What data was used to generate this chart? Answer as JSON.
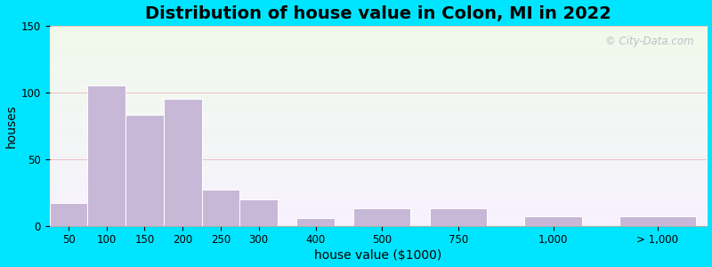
{
  "title": "Distribution of house value in Colon, MI in 2022",
  "xlabel": "house value ($1000)",
  "ylabel": "houses",
  "bar_color": "#c8b8d8",
  "bar_edgecolor": "#ffffff",
  "bar_heights": [
    17,
    105,
    83,
    95,
    27,
    20,
    6,
    13,
    13,
    7,
    7
  ],
  "ylim": [
    0,
    150
  ],
  "yticks": [
    0,
    50,
    100,
    150
  ],
  "xtick_labels": [
    "50",
    "100",
    "150",
    "200",
    "250",
    "300",
    "400",
    "500",
    "750",
    "1,000",
    "> 1,000"
  ],
  "background_outer": "#00e5ff",
  "grid_color": "#e8b8b8",
  "title_fontsize": 14,
  "axis_label_fontsize": 10,
  "tick_fontsize": 8.5,
  "watermark_text": "© City-Data.com"
}
